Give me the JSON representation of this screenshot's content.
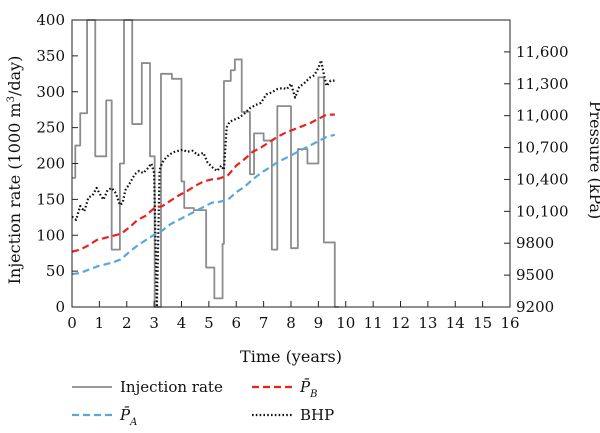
{
  "chart_data": {
    "type": "line",
    "xlabel": "Time (years)",
    "ylabel_left_prefix": "Injection rate (1000 m",
    "ylabel_left_sup": "3",
    "ylabel_left_suffix": "/day)",
    "ylabel_right": "Pressure (kPa)",
    "xlim": [
      0,
      16
    ],
    "ylim_left": [
      0,
      400
    ],
    "ylim_right": [
      9200,
      11900
    ],
    "x_ticks": [
      "0",
      "1",
      "2",
      "3",
      "4",
      "5",
      "6",
      "7",
      "8",
      "9",
      "10",
      "11",
      "12",
      "13",
      "14",
      "15",
      "16"
    ],
    "y_left_ticks": [
      "0",
      "50",
      "100",
      "150",
      "200",
      "250",
      "300",
      "350",
      "400"
    ],
    "y_right_ticks": [
      "9200",
      "9500",
      "9800",
      "10,100",
      "10,400",
      "10,700",
      "11,000",
      "11,300",
      "11,600"
    ],
    "grid": false,
    "legend_position": "below",
    "series": [
      {
        "name": "Injection rate",
        "axis": "left",
        "color": "#8c8c8c",
        "style": "solid",
        "x": [
          0,
          0.12,
          0.12,
          0.3,
          0.3,
          0.55,
          0.55,
          0.65,
          0.65,
          0.85,
          0.85,
          1.0,
          1.0,
          1.25,
          1.25,
          1.45,
          1.45,
          1.62,
          1.62,
          1.75,
          1.75,
          1.9,
          1.9,
          2.0,
          2.0,
          2.2,
          2.2,
          2.35,
          2.35,
          2.55,
          2.55,
          2.65,
          2.65,
          2.85,
          2.85,
          3.02,
          3.02,
          3.2,
          3.2,
          3.25,
          3.25,
          3.5,
          3.5,
          3.65,
          3.65,
          3.8,
          3.8,
          4.0,
          4.0,
          4.1,
          4.1,
          4.25,
          4.25,
          4.45,
          4.45,
          4.65,
          4.65,
          4.9,
          4.9,
          5.0,
          5.0,
          5.2,
          5.2,
          5.3,
          5.3,
          5.5,
          5.5,
          5.55,
          5.55,
          5.8,
          5.8,
          5.95,
          5.95,
          6.1,
          6.1,
          6.2,
          6.2,
          6.5,
          6.5,
          6.65,
          6.65,
          6.8,
          6.8,
          7.0,
          7.0,
          7.15,
          7.15,
          7.3,
          7.3,
          7.5,
          7.5,
          7.75,
          7.75,
          8.0,
          8.0,
          8.25,
          8.25,
          8.45,
          8.45,
          8.6,
          8.6,
          8.8,
          8.8,
          9.0,
          9.0,
          9.2,
          9.2,
          9.3,
          9.3,
          9.6,
          9.6,
          9.75
        ],
        "values": [
          180,
          180,
          225,
          225,
          270,
          270,
          400,
          400,
          400,
          400,
          210,
          210,
          210,
          210,
          288,
          288,
          80,
          80,
          80,
          80,
          200,
          200,
          400,
          400,
          400,
          400,
          255,
          255,
          255,
          255,
          340,
          340,
          340,
          340,
          210,
          210,
          0,
          0,
          0,
          0,
          325,
          325,
          325,
          325,
          318,
          318,
          318,
          318,
          175,
          175,
          138,
          138,
          138,
          138,
          135,
          135,
          135,
          135,
          55,
          55,
          55,
          55,
          12,
          12,
          12,
          12,
          88,
          88,
          315,
          315,
          330,
          330,
          345,
          345,
          345,
          345,
          272,
          272,
          185,
          185,
          242,
          242,
          242,
          242,
          232,
          232,
          232,
          232,
          80,
          80,
          280,
          280,
          280,
          280,
          82,
          82,
          220,
          220,
          220,
          220,
          200,
          200,
          200,
          200,
          320,
          320,
          90,
          90,
          90,
          90,
          0,
          0
        ]
      },
      {
        "name": "BHP",
        "axis": "right",
        "color": "#111111",
        "style": "dotted",
        "x": [
          0,
          0.15,
          0.3,
          0.45,
          0.6,
          0.75,
          0.9,
          1.0,
          1.15,
          1.3,
          1.45,
          1.6,
          1.75,
          1.85,
          1.95,
          2.1,
          2.3,
          2.45,
          2.6,
          2.75,
          2.9,
          3.0,
          3.1,
          3.2,
          3.3,
          3.45,
          3.6,
          3.75,
          3.9,
          4.05,
          4.2,
          4.4,
          4.6,
          4.8,
          4.95,
          5.1,
          5.3,
          5.45,
          5.55,
          5.65,
          5.75,
          5.9,
          6.1,
          6.3,
          6.5,
          6.7,
          6.9,
          7.1,
          7.3,
          7.5,
          7.7,
          7.85,
          8.0,
          8.15,
          8.3,
          8.5,
          8.7,
          8.85,
          9.0,
          9.1,
          9.2,
          9.3,
          9.45,
          9.6
        ],
        "values": [
          10050,
          10020,
          10150,
          10100,
          10230,
          10250,
          10320,
          10270,
          10210,
          10300,
          10320,
          10270,
          10160,
          10180,
          10300,
          10360,
          10450,
          10480,
          10460,
          10500,
          10550,
          10460,
          9200,
          10490,
          10560,
          10610,
          10640,
          10660,
          10670,
          10680,
          10660,
          10670,
          10630,
          10650,
          10560,
          10520,
          10480,
          10530,
          10490,
          10890,
          10940,
          10960,
          10980,
          11020,
          11070,
          11100,
          11120,
          11200,
          11220,
          11250,
          11260,
          11250,
          11300,
          11170,
          11270,
          11310,
          11360,
          11380,
          11450,
          11520,
          11390,
          11280,
          11330,
          11330
        ]
      },
      {
        "name": "P̄_B",
        "label_main": "P̄",
        "label_sub": "B",
        "axis": "right",
        "color": "#e8231f",
        "style": "dashed",
        "x": [
          0,
          0.3,
          0.6,
          0.9,
          1.2,
          1.5,
          1.8,
          2.1,
          2.4,
          2.7,
          3.0,
          3.3,
          3.6,
          3.9,
          4.2,
          4.5,
          4.8,
          5.1,
          5.4,
          5.7,
          6.0,
          6.3,
          6.6,
          6.9,
          7.2,
          7.5,
          7.8,
          8.1,
          8.4,
          8.7,
          9.0,
          9.3,
          9.6
        ],
        "values": [
          9720,
          9740,
          9780,
          9830,
          9850,
          9870,
          9890,
          9950,
          10020,
          10060,
          10130,
          10150,
          10200,
          10250,
          10290,
          10340,
          10380,
          10400,
          10410,
          10440,
          10530,
          10590,
          10660,
          10700,
          10750,
          10800,
          10840,
          10870,
          10900,
          10930,
          10970,
          11010,
          11010
        ]
      },
      {
        "name": "P̄_A",
        "label_main": "P̄",
        "label_sub": "A",
        "axis": "right",
        "color": "#5aa7dd",
        "style": "dashed",
        "x": [
          0,
          0.3,
          0.6,
          0.9,
          1.2,
          1.5,
          1.8,
          2.1,
          2.4,
          2.7,
          3.0,
          3.3,
          3.6,
          3.9,
          4.2,
          4.5,
          4.8,
          5.1,
          5.4,
          5.7,
          6.0,
          6.3,
          6.6,
          6.9,
          7.2,
          7.5,
          7.8,
          8.1,
          8.4,
          8.7,
          9.0,
          9.3,
          9.6
        ],
        "values": [
          9510,
          9520,
          9550,
          9580,
          9600,
          9620,
          9650,
          9720,
          9780,
          9830,
          9880,
          9920,
          9980,
          10020,
          10060,
          10100,
          10140,
          10180,
          10190,
          10210,
          10280,
          10330,
          10400,
          10460,
          10510,
          10560,
          10600,
          10640,
          10680,
          10720,
          10760,
          10800,
          10820
        ]
      }
    ],
    "legend": [
      {
        "label": "Injection rate",
        "series": 0
      },
      {
        "label_main": "P̄",
        "label_sub": "B",
        "series": 2
      },
      {
        "label_main": "P̄",
        "label_sub": "A",
        "series": 3
      },
      {
        "label": "BHP",
        "series": 1
      }
    ]
  }
}
